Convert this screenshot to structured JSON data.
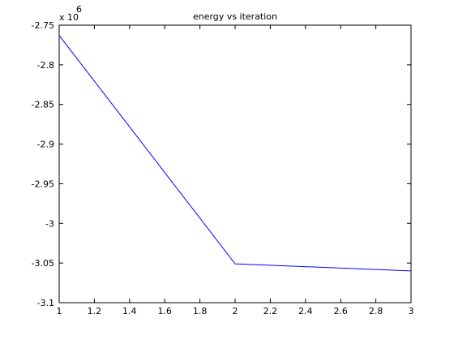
{
  "chart_data": {
    "type": "line",
    "title": "energy vs iteration",
    "xlabel": "",
    "ylabel": "",
    "y_multiplier_label": {
      "base": "x 10",
      "exponent": "6"
    },
    "xlim": [
      1,
      3
    ],
    "ylim": [
      -3.1,
      -2.75
    ],
    "xticks": [
      "1",
      "1.2",
      "1.4",
      "1.6",
      "1.8",
      "2",
      "2.2",
      "2.4",
      "2.6",
      "2.8",
      "3"
    ],
    "yticks": [
      "-2.75",
      "-2.8",
      "-2.85",
      "-2.9",
      "-2.95",
      "-3",
      "-3.05",
      "-3.1"
    ],
    "grid": false,
    "series": [
      {
        "x": [
          1,
          2,
          3
        ],
        "y": [
          -2.763,
          -3.051,
          -3.06
        ],
        "color": "#0000ff"
      }
    ]
  }
}
